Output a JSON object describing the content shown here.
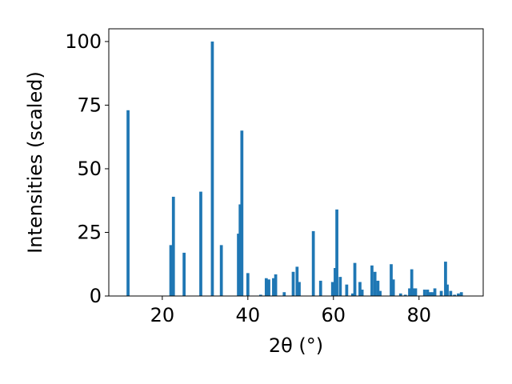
{
  "chart_data": {
    "type": "bar",
    "xlabel": "2θ (°)",
    "ylabel": "Intensities (scaled)",
    "xlim": [
      7.5,
      95
    ],
    "ylim": [
      0,
      105
    ],
    "x_ticks": [
      20,
      40,
      60,
      80
    ],
    "y_ticks": [
      0,
      25,
      50,
      75,
      100
    ],
    "grid": false,
    "bar_color": "#1f77b4",
    "bar_width": 0.7,
    "series": [
      {
        "x": [
          12.0,
          22.0,
          22.6,
          25.1,
          29.0,
          31.7,
          33.8,
          37.8,
          38.2,
          38.6,
          40.0,
          43.0,
          44.3,
          44.9,
          46.0,
          46.5,
          48.5,
          50.6,
          51.5,
          52.0,
          55.3,
          57.0,
          59.8,
          60.4,
          60.8,
          61.6,
          63.1,
          64.5,
          65.0,
          66.2,
          66.7,
          69.0,
          69.7,
          70.4,
          70.9,
          73.5,
          74.0,
          75.7,
          76.8,
          77.8,
          78.3,
          78.7,
          79.2,
          81.3,
          82.0,
          82.6,
          83.1,
          83.7,
          85.2,
          86.2,
          86.6,
          87.4,
          88.3,
          89.2,
          89.9
        ],
        "values": [
          73,
          20,
          39,
          17,
          41,
          100,
          20,
          24.5,
          36,
          65,
          9,
          0.5,
          7,
          6.5,
          7,
          8.5,
          1.5,
          9.5,
          11.5,
          5.5,
          25.5,
          6,
          5.5,
          11,
          34,
          7.5,
          4.5,
          1,
          13,
          5.5,
          2.5,
          12,
          9.5,
          6,
          2,
          12.5,
          6.5,
          1,
          0.5,
          3,
          10.5,
          3,
          3,
          2.5,
          2.5,
          1.5,
          1.5,
          3,
          2,
          13.5,
          4.5,
          2,
          0.5,
          1,
          1.5
        ]
      }
    ]
  }
}
